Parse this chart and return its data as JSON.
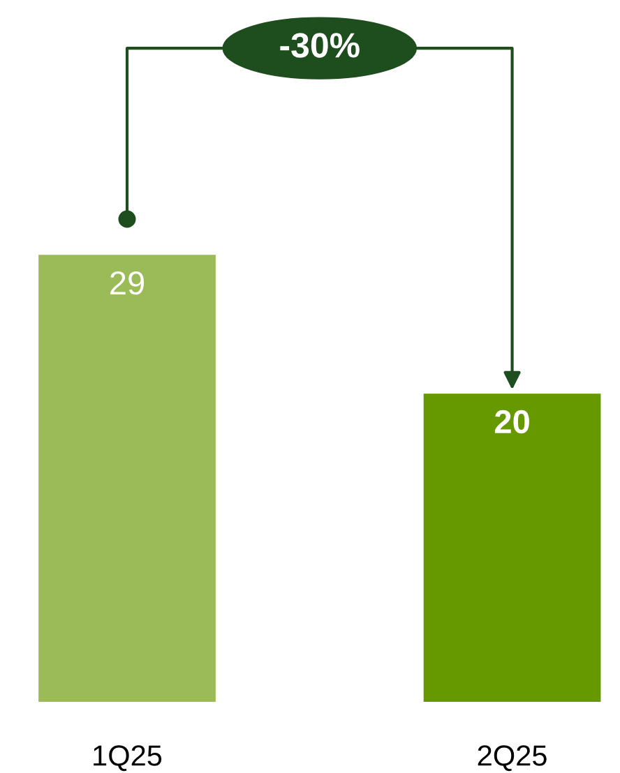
{
  "chart_data": {
    "type": "bar",
    "categories": [
      "1Q25",
      "2Q25"
    ],
    "values": [
      29,
      20
    ],
    "colors": [
      "#9bbb59",
      "#669900"
    ],
    "data_labels": true,
    "annotations": [
      "-30%"
    ]
  }
}
